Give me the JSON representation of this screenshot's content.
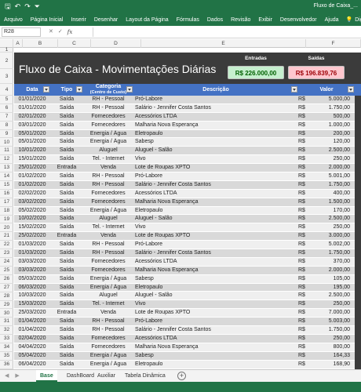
{
  "titlebar": {
    "title": "Fluxo de Caixa_..."
  },
  "ribbon": {
    "tabs": [
      "Arquivo",
      "Página Inicial",
      "Inserir",
      "Desenhar",
      "Layout da Página",
      "Fórmulas",
      "Dados",
      "Revisão",
      "Exibir",
      "Desenvolvedor",
      "Ajuda"
    ],
    "search": "Diga-me o que"
  },
  "formula_bar": {
    "cell": "R28",
    "fx": "fx",
    "value": ""
  },
  "columns": [
    "A",
    "B",
    "C",
    "D",
    "E",
    "F"
  ],
  "rows_numbers": [
    "1",
    "2",
    "3",
    "4",
    "5",
    "6",
    "7",
    "8",
    "9",
    "10",
    "11",
    "12",
    "13",
    "14",
    "15",
    "16",
    "17",
    "18",
    "19",
    "20",
    "21",
    "22",
    "23",
    "24",
    "25",
    "26",
    "27",
    "28",
    "29",
    "30",
    "31",
    "32",
    "33",
    "34",
    "35",
    "36",
    "37"
  ],
  "banner": {
    "title": "Fluxo de Caixa - Movimentações Diárias",
    "entradas_label": "Entradas",
    "entradas_value": "R$ 226.000,00",
    "saidas_label": "Saídas",
    "saidas_value": "R$ 196.839,76",
    "color_in_bg": "#c6efce",
    "color_out_bg": "#ffc7ce"
  },
  "table": {
    "headers": {
      "data": "Data",
      "tipo": "Tipo",
      "categoria": "Categoria",
      "categoria_sub": "(Centro de Custo)",
      "descricao": "Descrição",
      "valor": "Valor"
    },
    "rows": [
      {
        "data": "01/01/2020",
        "tipo": "Saída",
        "cat": "RH - Pessoal",
        "desc": "Pró-Labore",
        "cur": "R$",
        "val": "5.000,00"
      },
      {
        "data": "01/01/2020",
        "tipo": "Saída",
        "cat": "RH - Pessoal",
        "desc": "Salário - Jennifer Costa Santos",
        "cur": "R$",
        "val": "1.750,00"
      },
      {
        "data": "02/01/2020",
        "tipo": "Saída",
        "cat": "Fornecedores",
        "desc": "Acessórios LTDA",
        "cur": "R$",
        "val": "500,00"
      },
      {
        "data": "03/01/2020",
        "tipo": "Saída",
        "cat": "Fornecedores",
        "desc": "Malharia Nova Esperança",
        "cur": "R$",
        "val": "1.000,00"
      },
      {
        "data": "05/01/2020",
        "tipo": "Saída",
        "cat": "Energia / Água",
        "desc": "Eletropaulo",
        "cur": "R$",
        "val": "200,00"
      },
      {
        "data": "05/01/2020",
        "tipo": "Saída",
        "cat": "Energia / Água",
        "desc": "Sabesp",
        "cur": "R$",
        "val": "120,00"
      },
      {
        "data": "10/01/2020",
        "tipo": "Saída",
        "cat": "Aluguel",
        "desc": "Aluguel - Salão",
        "cur": "R$",
        "val": "2.500,00"
      },
      {
        "data": "15/01/2020",
        "tipo": "Saída",
        "cat": "Tel. - Internet",
        "desc": "Vivo",
        "cur": "R$",
        "val": "250,00"
      },
      {
        "data": "25/01/2020",
        "tipo": "Entrada",
        "cat": "Venda",
        "desc": "Lote de Roupas XPTO",
        "cur": "R$",
        "val": "2.000,00"
      },
      {
        "data": "01/02/2020",
        "tipo": "Saída",
        "cat": "RH - Pessoal",
        "desc": "Pró-Labore",
        "cur": "R$",
        "val": "5.001,00"
      },
      {
        "data": "01/02/2020",
        "tipo": "Saída",
        "cat": "RH - Pessoal",
        "desc": "Salário - Jennifer Costa Santos",
        "cur": "R$",
        "val": "1.750,00"
      },
      {
        "data": "02/02/2020",
        "tipo": "Saída",
        "cat": "Fornecedores",
        "desc": "Acessórios LTDA",
        "cur": "R$",
        "val": "400,00"
      },
      {
        "data": "03/02/2020",
        "tipo": "Saída",
        "cat": "Fornecedores",
        "desc": "Malharia Nova Esperança",
        "cur": "R$",
        "val": "1.500,00"
      },
      {
        "data": "05/02/2020",
        "tipo": "Saída",
        "cat": "Energia / Água",
        "desc": "Eletropaulo",
        "cur": "R$",
        "val": "170,00"
      },
      {
        "data": "10/02/2020",
        "tipo": "Saída",
        "cat": "Aluguel",
        "desc": "Aluguel - Salão",
        "cur": "R$",
        "val": "2.500,00"
      },
      {
        "data": "15/02/2020",
        "tipo": "Saída",
        "cat": "Tel. - Internet",
        "desc": "Vivo",
        "cur": "R$",
        "val": "250,00"
      },
      {
        "data": "25/02/2020",
        "tipo": "Entrada",
        "cat": "Venda",
        "desc": "Lote de Roupas XPTO",
        "cur": "R$",
        "val": "3.000,00"
      },
      {
        "data": "01/03/2020",
        "tipo": "Saída",
        "cat": "RH - Pessoal",
        "desc": "Pró-Labore",
        "cur": "R$",
        "val": "5.002,00"
      },
      {
        "data": "01/03/2020",
        "tipo": "Saída",
        "cat": "RH - Pessoal",
        "desc": "Salário - Jennifer Costa Santos",
        "cur": "R$",
        "val": "1.750,00"
      },
      {
        "data": "03/03/2020",
        "tipo": "Saída",
        "cat": "Fornecedores",
        "desc": "Acessórios LTDA",
        "cur": "R$",
        "val": "370,00"
      },
      {
        "data": "03/03/2020",
        "tipo": "Saída",
        "cat": "Fornecedores",
        "desc": "Malharia Nova Esperança",
        "cur": "R$",
        "val": "2.000,00"
      },
      {
        "data": "05/03/2020",
        "tipo": "Saída",
        "cat": "Energia / Água",
        "desc": "Sabesp",
        "cur": "R$",
        "val": "105,00"
      },
      {
        "data": "06/03/2020",
        "tipo": "Saída",
        "cat": "Energia / Água",
        "desc": "Eletropaulo",
        "cur": "R$",
        "val": "195,00"
      },
      {
        "data": "10/03/2020",
        "tipo": "Saída",
        "cat": "Aluguel",
        "desc": "Aluguel - Salão",
        "cur": "R$",
        "val": "2.500,00"
      },
      {
        "data": "15/03/2020",
        "tipo": "Saída",
        "cat": "Tel. - Internet",
        "desc": "Vivo",
        "cur": "R$",
        "val": "250,00"
      },
      {
        "data": "25/03/2020",
        "tipo": "Entrada",
        "cat": "Venda",
        "desc": "Lote de Roupas XPTO",
        "cur": "R$",
        "val": "7.000,00"
      },
      {
        "data": "01/04/2020",
        "tipo": "Saída",
        "cat": "RH - Pessoal",
        "desc": "Pró-Labore",
        "cur": "R$",
        "val": "5.003,00"
      },
      {
        "data": "01/04/2020",
        "tipo": "Saída",
        "cat": "RH - Pessoal",
        "desc": "Salário - Jennifer Costa Santos",
        "cur": "R$",
        "val": "1.750,00"
      },
      {
        "data": "02/04/2020",
        "tipo": "Saída",
        "cat": "Fornecedores",
        "desc": "Acessórios LTDA",
        "cur": "R$",
        "val": "250,00"
      },
      {
        "data": "04/04/2020",
        "tipo": "Saída",
        "cat": "Fornecedores",
        "desc": "Malharia Nova Esperança",
        "cur": "R$",
        "val": "800,00"
      },
      {
        "data": "05/04/2020",
        "tipo": "Saída",
        "cat": "Energia / Água",
        "desc": "Sabesp",
        "cur": "R$",
        "val": "164,33"
      },
      {
        "data": "06/04/2020",
        "tipo": "Saída",
        "cat": "Energia / Água",
        "desc": "Eletropaulo",
        "cur": "R$",
        "val": "168,90"
      }
    ]
  },
  "sheet_tabs": {
    "items": [
      "Base",
      "DashBoard",
      "Auxiliar",
      "Tabela Dinâmica"
    ],
    "active": "Base",
    "add": "+"
  }
}
